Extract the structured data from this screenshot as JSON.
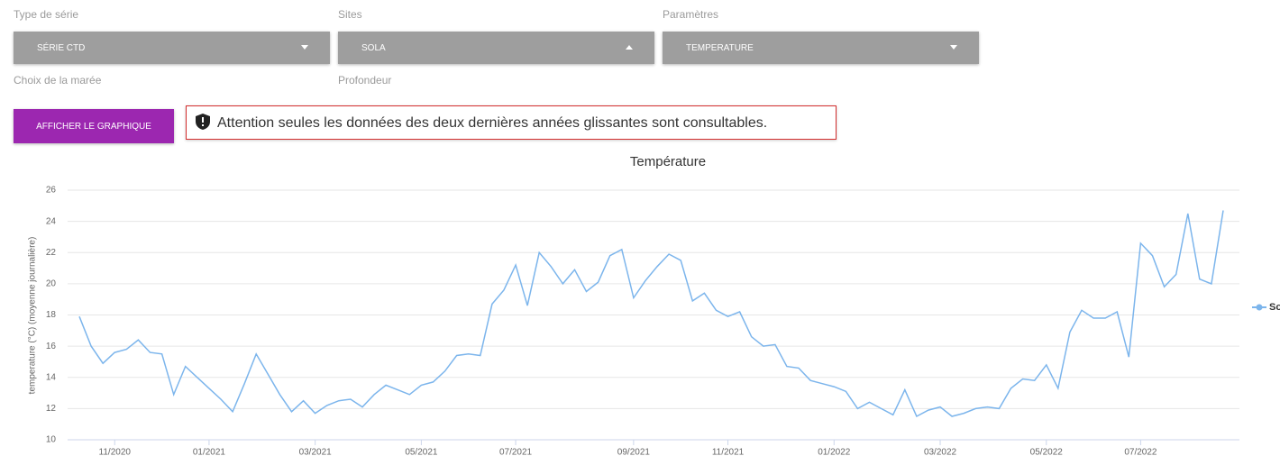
{
  "form": {
    "fields": [
      {
        "label": "Type de série",
        "value": "SÉRIE CTD"
      },
      {
        "label": "Sites",
        "value": "SOLA"
      },
      {
        "label": "Paramètres",
        "value": "TEMPERATURE"
      }
    ],
    "extra_labels": [
      "Choix de la marée",
      "Profondeur"
    ],
    "button": "AFFICHER LE GRAPHIQUE",
    "notice": "Attention seules les données des deux dernières années glissantes sont consultables."
  },
  "chart_data": {
    "type": "line",
    "title": "Température",
    "y_label": "temperature (°C) (moyenne journalière)",
    "categories": [
      null,
      null,
      null,
      "11/2020",
      null,
      null,
      null,
      null,
      null,
      null,
      null,
      "01/2021",
      null,
      null,
      null,
      null,
      null,
      null,
      null,
      null,
      "03/2021",
      null,
      null,
      null,
      null,
      null,
      null,
      null,
      null,
      "05/2021",
      null,
      null,
      null,
      null,
      null,
      null,
      null,
      "07/2021",
      null,
      null,
      null,
      null,
      null,
      null,
      null,
      null,
      null,
      "09/2021",
      null,
      null,
      null,
      null,
      null,
      null,
      null,
      "11/2021",
      null,
      null,
      null,
      null,
      null,
      null,
      null,
      null,
      "01/2022",
      null,
      null,
      null,
      null,
      null,
      null,
      null,
      null,
      "03/2022",
      null,
      null,
      null,
      null,
      null,
      null,
      null,
      null,
      "05/2022",
      null,
      null,
      null,
      null,
      null,
      null,
      null,
      "07/2022",
      null,
      null,
      null,
      null,
      null,
      null,
      null
    ],
    "series": [
      {
        "name": "So",
        "color": "#7cb5ec",
        "values": [
          17.9,
          16.0,
          14.9,
          15.6,
          15.8,
          16.4,
          15.6,
          15.5,
          12.9,
          14.7,
          14.0,
          13.3,
          12.6,
          11.8,
          13.6,
          15.5,
          14.2,
          12.9,
          11.8,
          12.5,
          11.7,
          12.2,
          12.5,
          12.6,
          12.1,
          12.9,
          13.5,
          13.2,
          12.9,
          13.5,
          13.7,
          14.4,
          15.4,
          15.5,
          15.4,
          18.7,
          19.6,
          21.2,
          18.6,
          22.0,
          21.1,
          20.0,
          20.9,
          19.5,
          20.1,
          21.8,
          22.2,
          19.1,
          20.2,
          21.1,
          21.9,
          21.5,
          18.9,
          19.4,
          18.3,
          17.9,
          18.2,
          16.6,
          16.0,
          16.1,
          14.7,
          14.6,
          13.8,
          13.6,
          13.4,
          13.1,
          12.0,
          12.4,
          12.0,
          11.6,
          13.2,
          11.5,
          11.9,
          12.1,
          11.5,
          11.7,
          12.0,
          12.1,
          12.0,
          13.3,
          13.9,
          13.8,
          14.8,
          13.3,
          16.9,
          18.3,
          17.8,
          17.8,
          18.2,
          15.3,
          22.6,
          21.8,
          19.8,
          20.6,
          24.5,
          20.3,
          20.0,
          24.7
        ]
      }
    ],
    "ylim": [
      10,
      26
    ],
    "yticks": [
      10,
      12,
      14,
      16,
      18,
      20,
      22,
      24,
      26
    ],
    "grid": true
  }
}
